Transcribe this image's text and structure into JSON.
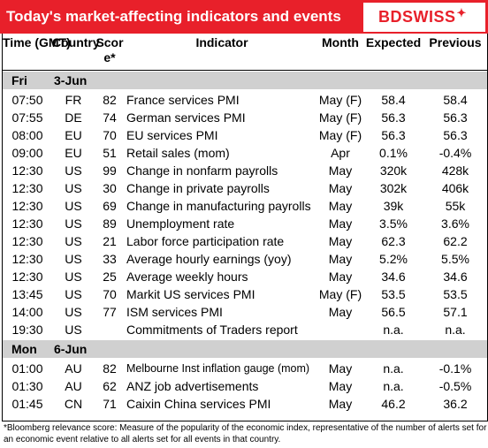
{
  "header": {
    "title": "Today's market-affecting indicators and events",
    "logo_text_a": "BD",
    "logo_text_b": "SWISS",
    "brand_color": "#e8202a"
  },
  "columns": {
    "time": "Time (GMT)",
    "country": "Country",
    "score": "Score*",
    "indicator": "Indicator",
    "month": "Month",
    "expected": "Expected",
    "previous": "Previous"
  },
  "days": [
    {
      "day": "Fri",
      "date": "3-Jun",
      "rows": [
        {
          "time": "07:50",
          "country": "FR",
          "score": "82",
          "indicator": "France services PMI",
          "month": "May (F)",
          "expected": "58.4",
          "previous": "58.4"
        },
        {
          "time": "07:55",
          "country": "DE",
          "score": "74",
          "indicator": "German services PMI",
          "month": "May (F)",
          "expected": "56.3",
          "previous": "56.3"
        },
        {
          "time": "08:00",
          "country": "EU",
          "score": "70",
          "indicator": "EU services PMI",
          "month": "May (F)",
          "expected": "56.3",
          "previous": "56.3"
        },
        {
          "time": "09:00",
          "country": "EU",
          "score": "51",
          "indicator": "Retail sales (mom)",
          "month": "Apr",
          "expected": "0.1%",
          "previous": "-0.4%"
        },
        {
          "time": "12:30",
          "country": "US",
          "score": "99",
          "indicator": "Change in nonfarm payrolls",
          "month": "May",
          "expected": "320k",
          "previous": "428k"
        },
        {
          "time": "12:30",
          "country": "US",
          "score": "30",
          "indicator": "Change in private payrolls",
          "month": "May",
          "expected": "302k",
          "previous": "406k"
        },
        {
          "time": "12:30",
          "country": "US",
          "score": "69",
          "indicator": "Change in manufacturing payrolls",
          "month": "May",
          "expected": "39k",
          "previous": "55k"
        },
        {
          "time": "12:30",
          "country": "US",
          "score": "89",
          "indicator": "Unemployment rate",
          "month": "May",
          "expected": "3.5%",
          "previous": "3.6%"
        },
        {
          "time": "12:30",
          "country": "US",
          "score": "21",
          "indicator": "Labor force participation rate",
          "month": "May",
          "expected": "62.3",
          "previous": "62.2"
        },
        {
          "time": "12:30",
          "country": "US",
          "score": "33",
          "indicator": "Average hourly earnings (yoy)",
          "month": "May",
          "expected": "5.2%",
          "previous": "5.5%"
        },
        {
          "time": "12:30",
          "country": "US",
          "score": "25",
          "indicator": "Average weekly hours",
          "month": "May",
          "expected": "34.6",
          "previous": "34.6"
        },
        {
          "time": "13:45",
          "country": "US",
          "score": "70",
          "indicator": "Markit US services PMI",
          "month": "May (F)",
          "expected": "53.5",
          "previous": "53.5"
        },
        {
          "time": "14:00",
          "country": "US",
          "score": "77",
          "indicator": "ISM services PMI",
          "month": "May",
          "expected": "56.5",
          "previous": "57.1"
        },
        {
          "time": "19:30",
          "country": "US",
          "score": "",
          "indicator": "Commitments of Traders  report",
          "month": "",
          "expected": "n.a.",
          "previous": "n.a."
        }
      ]
    },
    {
      "day": "Mon",
      "date": "6-Jun",
      "rows": [
        {
          "time": "01:00",
          "country": "AU",
          "score": "82",
          "indicator": "Melbourne Inst inflation gauge (mom)",
          "month": "May",
          "expected": "n.a.",
          "previous": "-0.1%"
        },
        {
          "time": "01:30",
          "country": "AU",
          "score": "62",
          "indicator": "ANZ job advertisements",
          "month": "May",
          "expected": "n.a.",
          "previous": "-0.5%"
        },
        {
          "time": "01:45",
          "country": "CN",
          "score": "71",
          "indicator": "Caixin China services PMI",
          "month": "May",
          "expected": "46.2",
          "previous": "36.2"
        }
      ]
    }
  ],
  "footnote": "*Bloomberg relevance score: Measure of the popularity of the economic index, representative of the number of alerts set for an economic event relative to all alerts set for all events in that country."
}
